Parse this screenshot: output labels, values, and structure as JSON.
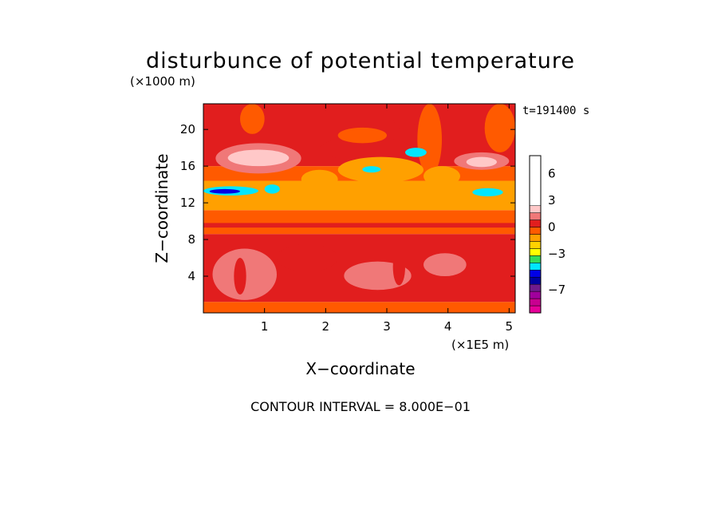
{
  "chart_data": {
    "type": "heatmap",
    "title": "disturbunce of potential temperature",
    "time_label": "t=191400 s",
    "xlabel": "X−coordinate",
    "ylabel": "Z−coordinate",
    "x_unit_label": "(×1E5 m)",
    "y_unit_label": "(×1000 m)",
    "footer": "CONTOUR INTERVAL = 8.000E−01",
    "xlim": [
      0,
      5.1
    ],
    "ylim": [
      0,
      22.8
    ],
    "x_ticks": [
      {
        "value": 1,
        "label": "1"
      },
      {
        "value": 2,
        "label": "2"
      },
      {
        "value": 3,
        "label": "3"
      },
      {
        "value": 4,
        "label": "4"
      },
      {
        "value": 5,
        "label": "5"
      }
    ],
    "y_ticks": [
      {
        "value": 4,
        "label": "4"
      },
      {
        "value": 8,
        "label": "8"
      },
      {
        "value": 12,
        "label": "12"
      },
      {
        "value": 16,
        "label": "16"
      },
      {
        "value": 20,
        "label": "20"
      }
    ],
    "colorbar": {
      "levels": [
        -9.6,
        -8.8,
        -8.0,
        -7.2,
        -6.4,
        -5.6,
        -4.8,
        -4.0,
        -3.2,
        -2.4,
        -1.6,
        -0.8,
        0.0,
        0.8,
        1.6,
        2.4,
        3.2,
        4.0,
        4.8,
        5.6,
        6.4,
        7.2,
        8.0
      ],
      "colors": [
        "#e60099",
        "#c80090",
        "#a0009c",
        "#6e1b8c",
        "#0000a0",
        "#0000e6",
        "#00e6ff",
        "#32dc5a",
        "#ffff00",
        "#ffd200",
        "#ffa000",
        "#ff5a00",
        "#e11e1e",
        "#f07878",
        "#ffc8c8"
      ],
      "tick_labels": [
        {
          "value": -7,
          "label": "−7"
        },
        {
          "value": -3,
          "label": "−3"
        },
        {
          "value": 0,
          "label": "0"
        },
        {
          "value": 3,
          "label": "3"
        },
        {
          "value": 6,
          "label": "6"
        }
      ]
    },
    "field": [
      {
        "x0": 0.0,
        "x1": 5.1,
        "z0": 0.0,
        "z1": 1.2,
        "v": -0.4
      },
      {
        "x0": 0.0,
        "x1": 5.1,
        "z0": 1.2,
        "z1": 8.6,
        "v": 0.3
      },
      {
        "x0": 0.0,
        "x1": 5.1,
        "z0": 8.6,
        "z1": 11.2,
        "v": -0.4
      },
      {
        "x0": 0.0,
        "x1": 5.1,
        "z0": 11.2,
        "z1": 14.4,
        "v": -1.2
      },
      {
        "x0": 0.0,
        "x1": 5.1,
        "z0": 14.4,
        "z1": 16.0,
        "v": -0.4
      },
      {
        "x0": 0.0,
        "x1": 5.1,
        "z0": 16.0,
        "z1": 22.8,
        "v": 0.3
      },
      {
        "x0": 0.15,
        "x1": 1.2,
        "z0": 1.4,
        "z1": 7.0,
        "v": 1.0
      },
      {
        "x0": 2.3,
        "x1": 3.4,
        "z0": 2.5,
        "z1": 5.6,
        "v": 1.0
      },
      {
        "x0": 3.6,
        "x1": 4.3,
        "z0": 4.0,
        "z1": 6.5,
        "v": 1.0
      },
      {
        "x0": 1.2,
        "x1": 2.2,
        "z0": 4.5,
        "z1": 7.5,
        "v": 0.3
      },
      {
        "x0": 0.0,
        "x1": 5.1,
        "z0": 10.4,
        "z1": 10.9,
        "v": -0.4
      },
      {
        "x0": 0.0,
        "x1": 5.1,
        "z0": 9.3,
        "z1": 9.8,
        "v": 0.3
      },
      {
        "x0": 1.9,
        "x1": 3.4,
        "z0": 16.6,
        "z1": 19.2,
        "v": 0.3
      },
      {
        "x0": 2.2,
        "x1": 3.0,
        "z0": 18.5,
        "z1": 20.2,
        "v": -0.4
      },
      {
        "x0": 3.1,
        "x1": 3.5,
        "z0": 20.0,
        "z1": 22.8,
        "v": 0.3
      },
      {
        "x0": 3.5,
        "x1": 3.9,
        "z0": 15.0,
        "z1": 22.8,
        "v": -0.4
      },
      {
        "x0": 4.6,
        "x1": 5.1,
        "z0": 17.5,
        "z1": 22.8,
        "v": -0.4
      },
      {
        "x0": 0.6,
        "x1": 1.0,
        "z0": 19.5,
        "z1": 22.8,
        "v": -0.4
      },
      {
        "x0": 1.6,
        "x1": 2.2,
        "z0": 13.5,
        "z1": 15.6,
        "v": -1.2
      },
      {
        "x0": 2.2,
        "x1": 3.6,
        "z0": 14.2,
        "z1": 17.0,
        "v": -1.2
      },
      {
        "x0": 3.6,
        "x1": 4.2,
        "z0": 13.8,
        "z1": 16.0,
        "v": -1.2
      },
      {
        "x0": 0.2,
        "x1": 1.6,
        "z0": 15.2,
        "z1": 18.5,
        "v": 1.0
      },
      {
        "x0": 0.4,
        "x1": 1.4,
        "z0": 16.0,
        "z1": 17.8,
        "v": 1.8
      },
      {
        "x0": 0.8,
        "x1": 1.3,
        "z0": 16.5,
        "z1": 17.6,
        "v": 2.6
      },
      {
        "x0": 4.1,
        "x1": 5.0,
        "z0": 15.6,
        "z1": 17.5,
        "v": 1.0
      },
      {
        "x0": 4.3,
        "x1": 4.8,
        "z0": 15.9,
        "z1": 17.0,
        "v": 1.8
      },
      {
        "x0": 0.0,
        "x1": 0.9,
        "z0": 12.8,
        "z1": 13.8,
        "v": -4.4
      },
      {
        "x0": 0.1,
        "x1": 0.6,
        "z0": 13.0,
        "z1": 13.5,
        "v": -5.2
      },
      {
        "x0": 1.0,
        "x1": 1.25,
        "z0": 13.0,
        "z1": 14.0,
        "v": -4.4
      },
      {
        "x0": 2.6,
        "x1": 2.9,
        "z0": 15.3,
        "z1": 16.0,
        "v": -4.4
      },
      {
        "x0": 3.3,
        "x1": 3.65,
        "z0": 17.0,
        "z1": 18.0,
        "v": -4.4
      },
      {
        "x0": 4.4,
        "x1": 4.9,
        "z0": 12.7,
        "z1": 13.6,
        "v": -4.4
      },
      {
        "x0": 3.1,
        "x1": 3.3,
        "z0": 3.0,
        "z1": 7.0,
        "v": 0.3
      },
      {
        "x0": 0.5,
        "x1": 0.7,
        "z0": 2.0,
        "z1": 6.0,
        "v": 0.3
      }
    ]
  }
}
